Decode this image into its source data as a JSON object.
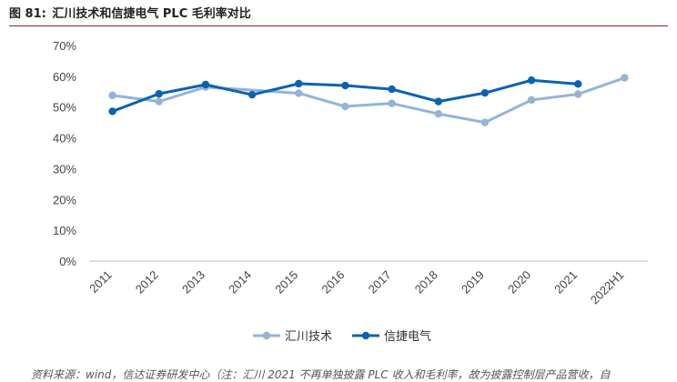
{
  "header": {
    "figure_no": "图 81:",
    "title": "汇川技术和信捷电气 PLC 毛利率对比"
  },
  "footer": {
    "source": "资料来源：wind，信达证券研发中心（注：汇川 2021 不再单独披露 PLC 收入和毛利率，故为披露控制层产品营收，自"
  },
  "chart_data": {
    "type": "line",
    "title": "汇川技术和信捷电气 PLC 毛利率对比",
    "categories": [
      "2011",
      "2012",
      "2013",
      "2014",
      "2015",
      "2016",
      "2017",
      "2018",
      "2019",
      "2020",
      "2021",
      "2022H1"
    ],
    "yticks": [
      "0%",
      "10%",
      "20%",
      "30%",
      "40%",
      "50%",
      "60%",
      "70%"
    ],
    "ylim": [
      0,
      70
    ],
    "legend_position": "bottom",
    "series": [
      {
        "name": "汇川技术",
        "color": "#95b3d7",
        "values": [
          53.8,
          51.8,
          56.5,
          null,
          54.5,
          50.2,
          51.2,
          47.8,
          45.0,
          52.3,
          54.2,
          59.5
        ]
      },
      {
        "name": "信捷电气",
        "color": "#0b63b0",
        "values": [
          48.6,
          54.3,
          57.3,
          54.0,
          57.6,
          57.0,
          55.8,
          51.8,
          54.6,
          58.7,
          57.5,
          null
        ]
      }
    ]
  }
}
